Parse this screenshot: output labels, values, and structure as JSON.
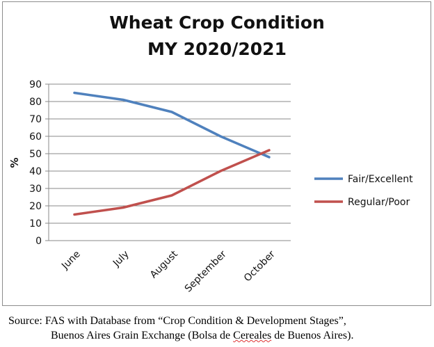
{
  "chart_data": {
    "type": "line",
    "title_line1": "Wheat Crop Condition",
    "title_line2": "MY 2020/2021",
    "ylabel": "%",
    "xlabel": "",
    "ylim": [
      0,
      90
    ],
    "yticks": [
      "0",
      "10",
      "20",
      "30",
      "40",
      "50",
      "60",
      "70",
      "80",
      "90"
    ],
    "categories": [
      "June",
      "July",
      "August",
      "September",
      "October"
    ],
    "grid": true,
    "legend_position": "right",
    "series": [
      {
        "name": "Fair/Excellent",
        "color": "#4f81bd",
        "values": [
          85,
          81,
          74,
          60,
          48
        ]
      },
      {
        "name": "Regular/Poor",
        "color": "#c0504d",
        "values": [
          15,
          19,
          26,
          40,
          52
        ]
      }
    ]
  },
  "source": {
    "line1": "Source: FAS with Database from “Crop Condition & Development Stages”,",
    "line2_a": "Buenos Aires Grain Exchange (Bolsa de ",
    "line2_b": "Cereales",
    "line2_c": " de Buenos Aires)."
  }
}
